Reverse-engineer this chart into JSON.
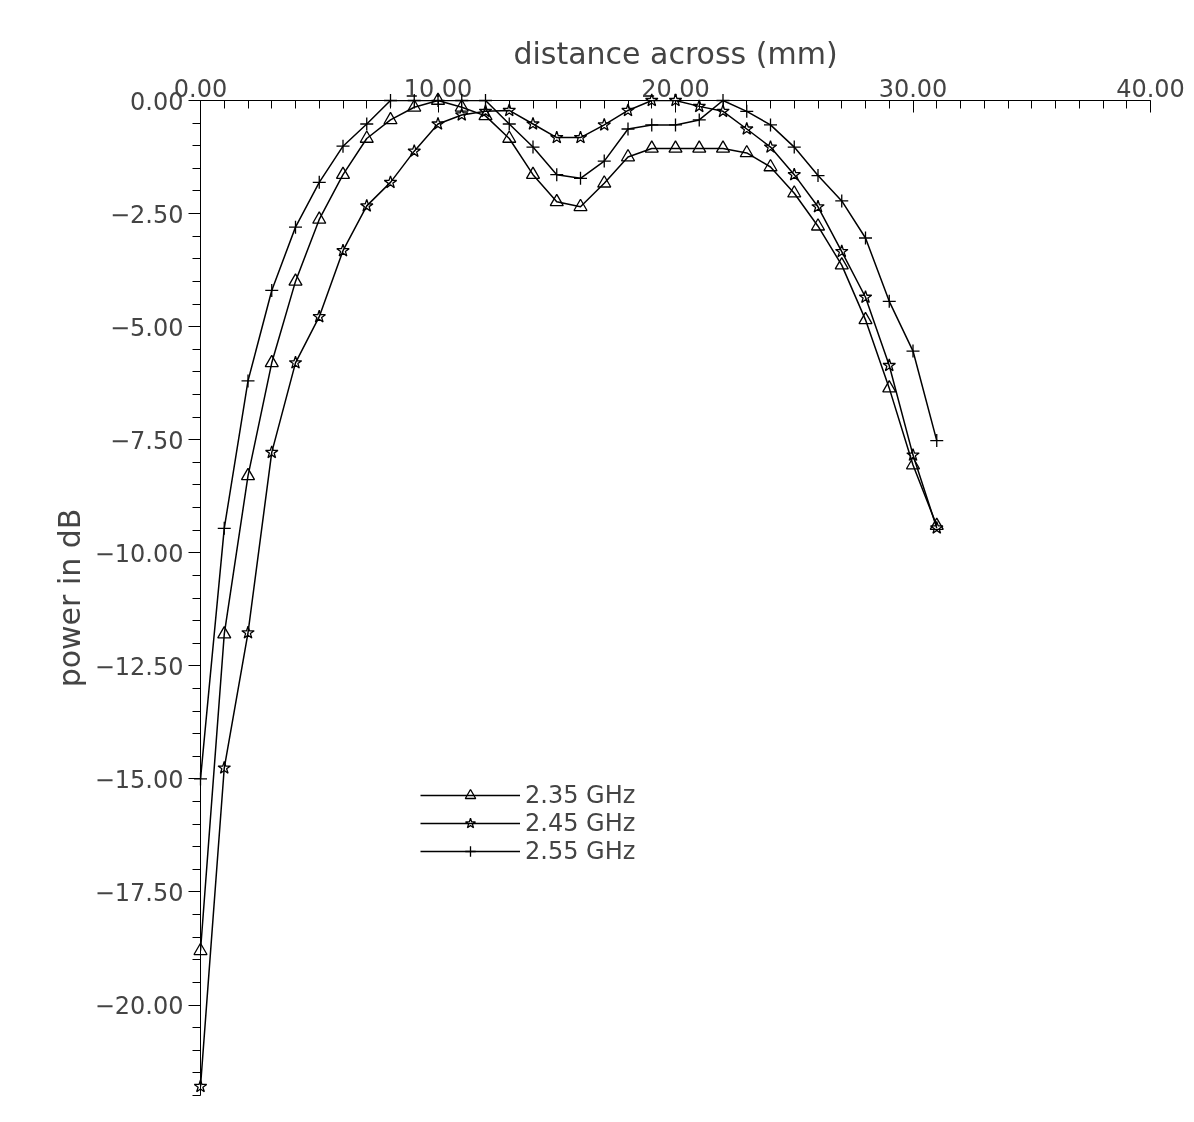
{
  "chart_data": {
    "type": "line",
    "xlabel": "distance across (mm)",
    "ylabel": "power in dB",
    "x": [
      0,
      1,
      2,
      3,
      4,
      5,
      6,
      7,
      8,
      9,
      10,
      11,
      12,
      13,
      14,
      15,
      16,
      17,
      18,
      19,
      20,
      21,
      22,
      23,
      24,
      25,
      26,
      27,
      28,
      29,
      30,
      31
    ],
    "series": [
      {
        "name": "2.35 GHz",
        "color": "#000000",
        "marker": "triangle",
        "values": [
          -18.8,
          -11.8,
          -8.3,
          -5.8,
          -4.0,
          -2.63,
          -1.64,
          -0.84,
          -0.43,
          -0.15,
          0,
          -0.15,
          -0.34,
          -0.84,
          -1.64,
          -2.24,
          -2.35,
          -1.83,
          -1.25,
          -1.06,
          -1.06,
          -1.06,
          -1.06,
          -1.16,
          -1.47,
          -2.05,
          -2.78,
          -3.64,
          -4.85,
          -6.36,
          -8.06,
          -9.4
        ]
      },
      {
        "name": "2.45 GHz",
        "color": "#000000",
        "marker": "star",
        "values": [
          -21.8,
          -14.76,
          -11.77,
          -7.78,
          -5.8,
          -4.78,
          -3.32,
          -2.33,
          -1.81,
          -1.12,
          -0.52,
          -0.32,
          -0.24,
          -0.22,
          -0.52,
          -0.82,
          -0.82,
          -0.54,
          -0.22,
          0,
          0,
          -0.13,
          -0.24,
          -0.63,
          -1.03,
          -1.64,
          -2.35,
          -3.34,
          -4.35,
          -5.86,
          -7.84,
          -9.45
        ]
      },
      {
        "name": "2.55 GHz",
        "color": "#000000",
        "marker": "cross",
        "values": [
          -15.0,
          -9.46,
          -6.2,
          -4.2,
          -2.8,
          -1.81,
          -1.01,
          -0.52,
          0,
          0,
          0,
          0,
          0,
          -0.52,
          -1.03,
          -1.64,
          -1.72,
          -1.34,
          -0.63,
          -0.54,
          -0.54,
          -0.43,
          0,
          -0.24,
          -0.54,
          -1.03,
          -1.66,
          -2.22,
          -3.04,
          -4.44,
          -5.54,
          -7.52
        ]
      }
    ],
    "xlim": [
      0,
      40
    ],
    "xticks": [
      {
        "value": 0,
        "label": "0.00"
      },
      {
        "value": 10,
        "label": "10.00"
      },
      {
        "value": 20,
        "label": "20.00"
      },
      {
        "value": 30,
        "label": "30.00"
      },
      {
        "value": 40,
        "label": "40.00"
      }
    ],
    "ylim": [
      -22,
      0
    ],
    "yticks": [
      {
        "value": 0,
        "label": "0.00"
      },
      {
        "value": -2.5,
        "label": "−2.50"
      },
      {
        "value": -5,
        "label": "−5.00"
      },
      {
        "value": -7.5,
        "label": "−7.50"
      },
      {
        "value": -10,
        "label": "−10.00"
      },
      {
        "value": -12.5,
        "label": "−12.50"
      },
      {
        "value": -15,
        "label": "−15.00"
      },
      {
        "value": -17.5,
        "label": "−17.50"
      },
      {
        "value": -20,
        "label": "−20.00"
      }
    ],
    "grid": false,
    "legend": "bottom",
    "line_style": "solid"
  }
}
